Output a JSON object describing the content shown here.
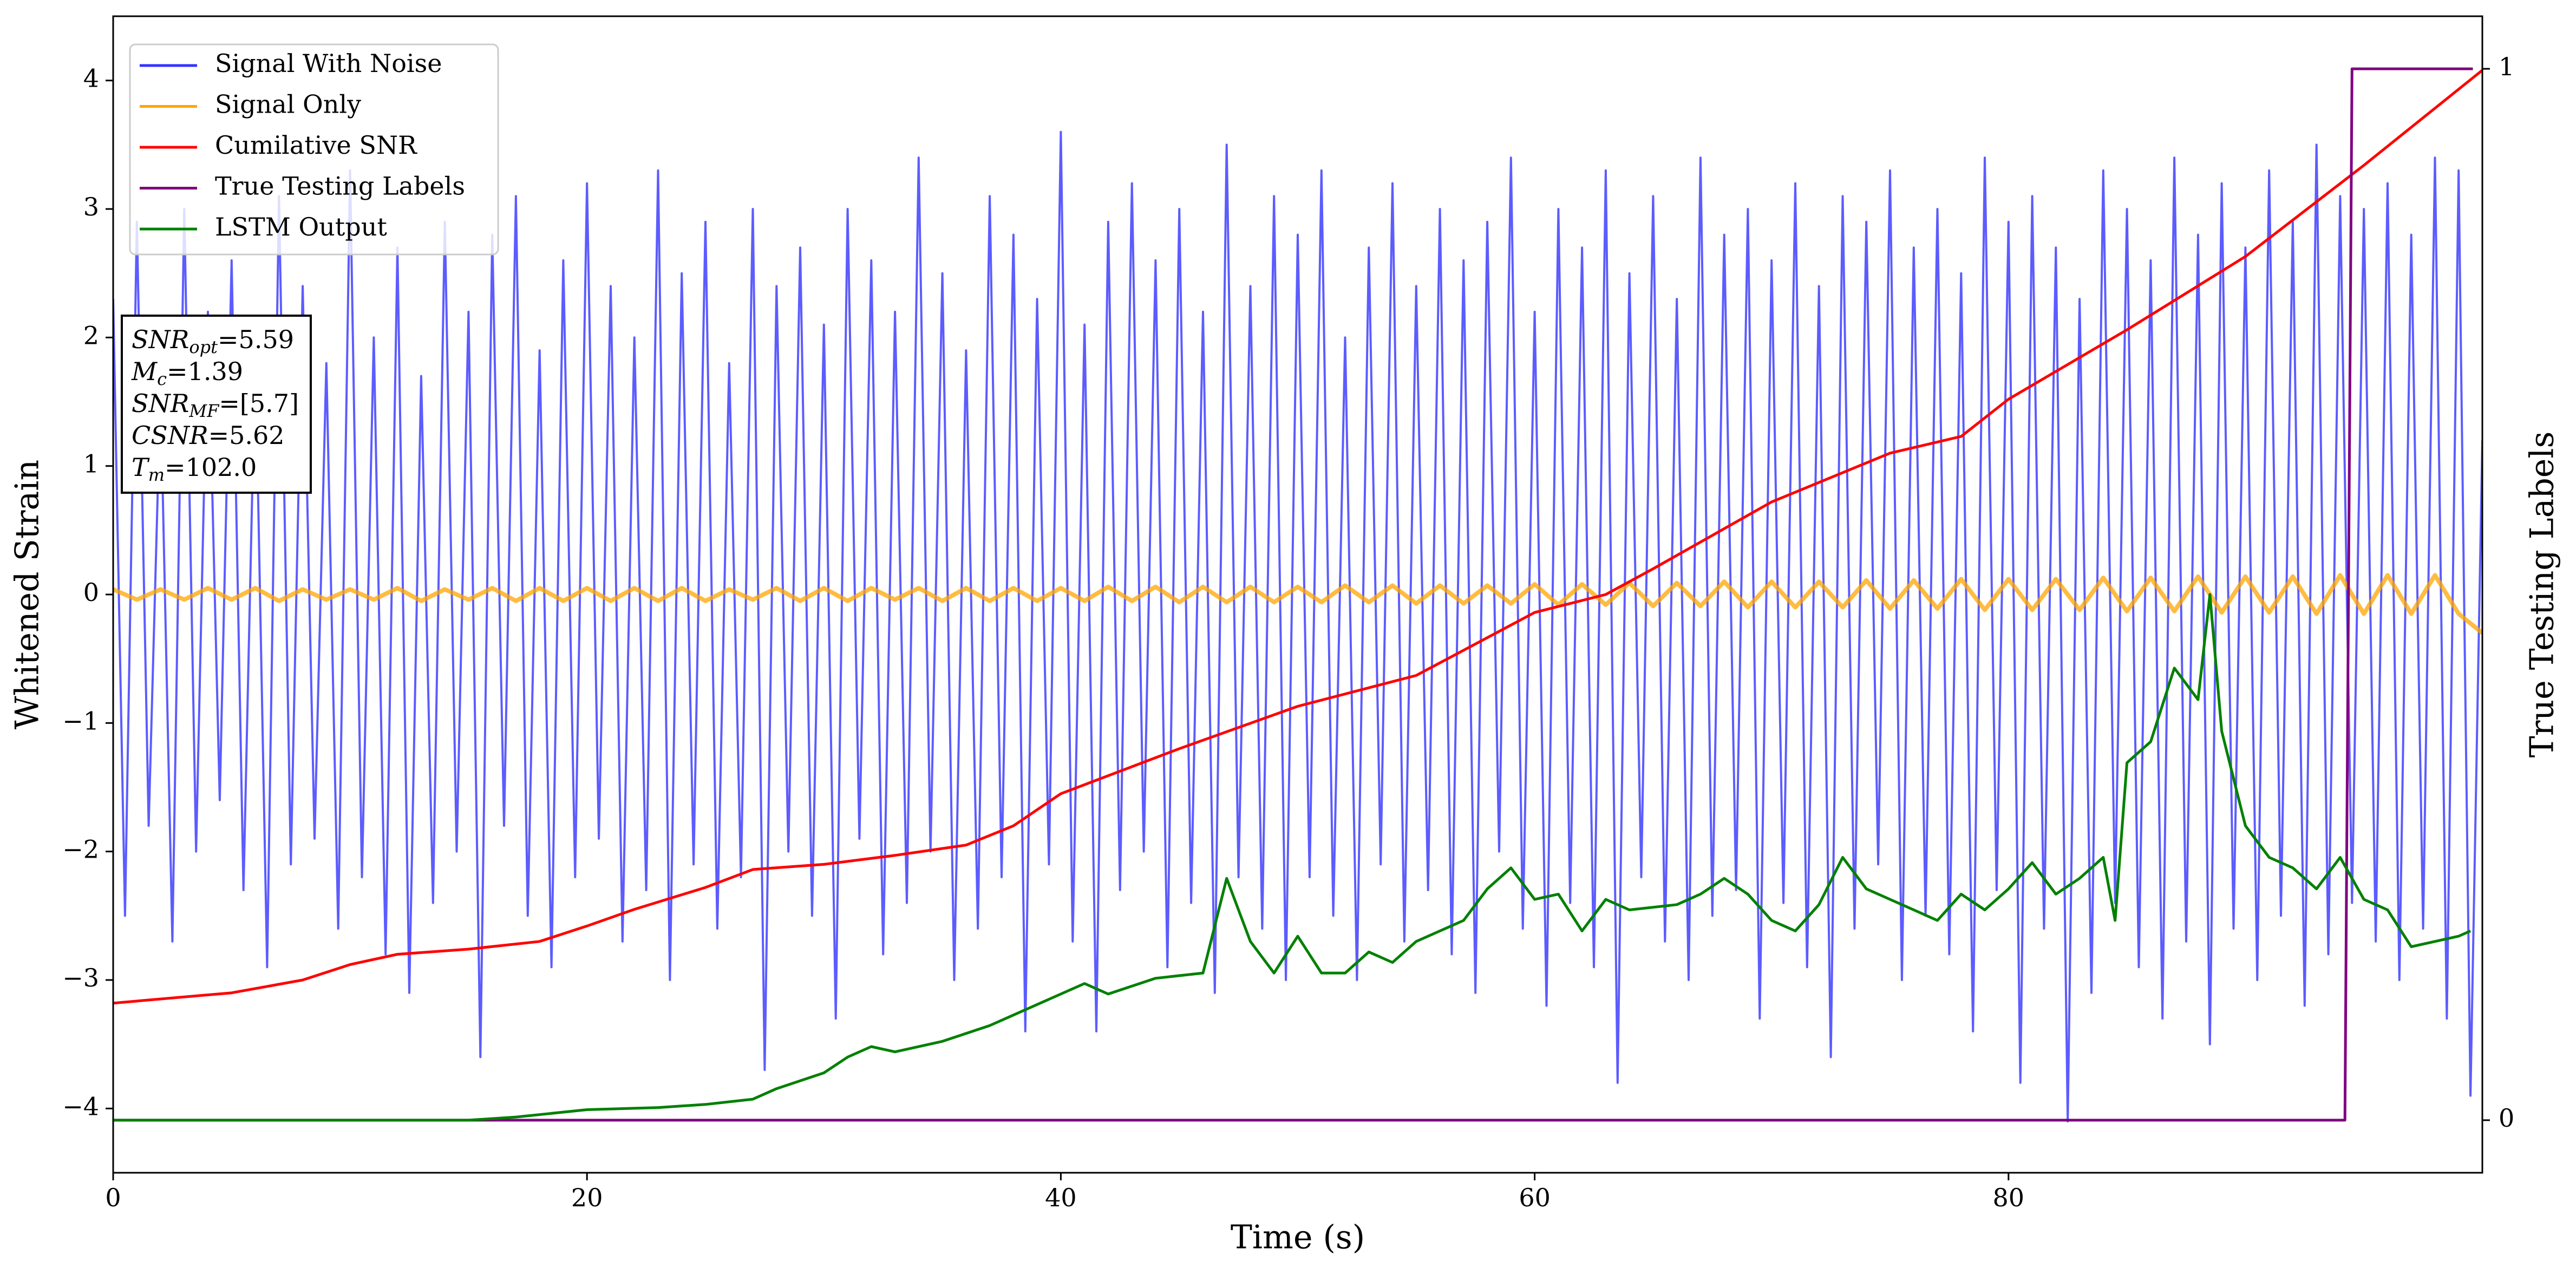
{
  "chart_data": {
    "type": "line",
    "xlabel": "Time (s)",
    "ylabel": "Whitened Strain",
    "y2label": "True Testing Labels",
    "xlim": [
      0,
      100
    ],
    "ylim": [
      -4.5,
      4.5
    ],
    "y2lim": [
      -0.05,
      1.05
    ],
    "xticks": [
      0,
      20,
      40,
      60,
      80
    ],
    "yticks": [
      {
        "value": -4,
        "label": "−4"
      },
      {
        "value": -3,
        "label": "−3"
      },
      {
        "value": -2,
        "label": "−2"
      },
      {
        "value": -1,
        "label": "−1"
      },
      0,
      1,
      2,
      3,
      4
    ],
    "y2ticks": [
      0,
      1
    ],
    "legend": "upper left",
    "annotations": [
      {
        "base": "SNR",
        "sub": "opt",
        "text": "=5.59"
      },
      {
        "base": "M",
        "sub": "c",
        "text": "=1.39"
      },
      {
        "base": "SNR",
        "sub": "MF",
        "text": "=[5.7]"
      },
      {
        "base": "CSNR",
        "sub": null,
        "text": "=5.62"
      },
      {
        "base": "T",
        "sub": "m",
        "text": "=102.0"
      }
    ],
    "series": [
      {
        "name": "Signal With Noise",
        "color": "#3333ff",
        "axis": "y",
        "x": [
          0,
          0.5,
          1,
          1.5,
          2,
          2.5,
          3,
          3.5,
          4,
          4.5,
          5,
          5.5,
          6,
          6.5,
          7,
          7.5,
          8,
          8.5,
          9,
          9.5,
          10,
          10.5,
          11,
          11.5,
          12,
          12.5,
          13,
          13.5,
          14,
          14.5,
          15,
          15.5,
          16,
          16.5,
          17,
          17.5,
          18,
          18.5,
          19,
          19.5,
          20,
          20.5,
          21,
          21.5,
          22,
          22.5,
          23,
          23.5,
          24,
          24.5,
          25,
          25.5,
          26,
          26.5,
          27,
          27.5,
          28,
          28.5,
          29,
          29.5,
          30,
          30.5,
          31,
          31.5,
          32,
          32.5,
          33,
          33.5,
          34,
          34.5,
          35,
          35.5,
          36,
          36.5,
          37,
          37.5,
          38,
          38.5,
          39,
          39.5,
          40,
          40.5,
          41,
          41.5,
          42,
          42.5,
          43,
          43.5,
          44,
          44.5,
          45,
          45.5,
          46,
          46.5,
          47,
          47.5,
          48,
          48.5,
          49,
          49.5,
          50,
          50.5,
          51,
          51.5,
          52,
          52.5,
          53,
          53.5,
          54,
          54.5,
          55,
          55.5,
          56,
          56.5,
          57,
          57.5,
          58,
          58.5,
          59,
          59.5,
          60,
          60.5,
          61,
          61.5,
          62,
          62.5,
          63,
          63.5,
          64,
          64.5,
          65,
          65.5,
          66,
          66.5,
          67,
          67.5,
          68,
          68.5,
          69,
          69.5,
          70,
          70.5,
          71,
          71.5,
          72,
          72.5,
          73,
          73.5,
          74,
          74.5,
          75,
          75.5,
          76,
          76.5,
          77,
          77.5,
          78,
          78.5,
          79,
          79.5,
          80,
          80.5,
          81,
          81.5,
          82,
          82.5,
          83,
          83.5,
          84,
          84.5,
          85,
          85.5,
          86,
          86.5,
          87,
          87.5,
          88,
          88.5,
          89,
          89.5,
          90,
          90.5,
          91,
          91.5,
          92,
          92.5,
          93,
          93.5,
          94,
          94.5,
          95,
          95.5,
          96,
          96.5,
          97,
          97.5,
          98,
          98.5,
          99,
          99.5,
          100
        ],
        "values": [
          2.3,
          -2.5,
          2.9,
          -1.8,
          1.6,
          -2.7,
          3.0,
          -2.0,
          2.2,
          -1.6,
          2.6,
          -2.3,
          1.9,
          -2.9,
          3.1,
          -2.1,
          2.4,
          -1.9,
          1.8,
          -2.6,
          3.3,
          -2.2,
          2.0,
          -2.8,
          2.7,
          -3.1,
          1.7,
          -2.4,
          2.9,
          -2.0,
          2.2,
          -3.6,
          2.8,
          -1.8,
          3.1,
          -2.5,
          1.9,
          -2.9,
          2.6,
          -2.2,
          3.2,
          -1.9,
          2.4,
          -2.7,
          2.0,
          -2.3,
          3.3,
          -3.0,
          2.5,
          -2.1,
          2.9,
          -2.6,
          1.8,
          -2.2,
          3.0,
          -3.7,
          2.4,
          -2.0,
          2.7,
          -2.5,
          2.1,
          -3.3,
          3.0,
          -1.9,
          2.6,
          -2.8,
          2.2,
          -2.4,
          3.4,
          -2.0,
          2.5,
          -3.0,
          1.9,
          -2.6,
          3.1,
          -2.2,
          2.8,
          -3.4,
          2.3,
          -2.1,
          3.6,
          -2.7,
          2.1,
          -3.4,
          2.9,
          -2.3,
          3.2,
          -2.0,
          2.6,
          -2.9,
          3.0,
          -2.4,
          2.2,
          -3.1,
          3.5,
          -2.2,
          2.4,
          -2.6,
          3.1,
          -3.0,
          2.8,
          -2.2,
          3.3,
          -2.5,
          2.0,
          -3.0,
          2.7,
          -2.1,
          3.2,
          -2.7,
          2.4,
          -2.3,
          3.0,
          -2.8,
          2.6,
          -3.1,
          2.9,
          -2.0,
          3.4,
          -2.6,
          2.2,
          -3.2,
          3.0,
          -2.4,
          2.7,
          -2.9,
          3.3,
          -3.8,
          2.5,
          -2.2,
          3.1,
          -2.7,
          2.3,
          -3.0,
          3.4,
          -2.5,
          2.8,
          -2.3,
          3.0,
          -3.3,
          2.6,
          -2.4,
          3.2,
          -2.9,
          2.4,
          -3.6,
          3.1,
          -2.6,
          2.9,
          -2.1,
          3.3,
          -3.0,
          2.7,
          -2.5,
          3.0,
          -2.8,
          2.5,
          -3.4,
          3.4,
          -2.3,
          2.9,
          -3.8,
          3.1,
          -2.6,
          2.7,
          -4.1,
          2.3,
          -3.1,
          3.3,
          -2.4,
          3.0,
          -2.9,
          2.6,
          -3.3,
          3.4,
          -2.7,
          2.8,
          -3.5,
          3.2,
          -2.6,
          2.7,
          -3.0,
          3.3,
          -2.5,
          2.9,
          -3.2,
          3.5,
          -2.8,
          3.1,
          -2.4,
          3.0,
          -2.7,
          3.2,
          -3.0,
          2.8,
          -2.6,
          3.4,
          -3.3,
          3.3,
          -3.9,
          1.2
        ]
      },
      {
        "name": "Signal Only",
        "color": "#ffa500",
        "axis": "y",
        "x": [
          0,
          1,
          2,
          3,
          4,
          5,
          6,
          7,
          8,
          9,
          10,
          11,
          12,
          13,
          14,
          15,
          16,
          17,
          18,
          19,
          20,
          21,
          22,
          23,
          24,
          25,
          26,
          27,
          28,
          29,
          30,
          31,
          32,
          33,
          34,
          35,
          36,
          37,
          38,
          39,
          40,
          41,
          42,
          43,
          44,
          45,
          46,
          47,
          48,
          49,
          50,
          51,
          52,
          53,
          54,
          55,
          56,
          57,
          58,
          59,
          60,
          61,
          62,
          63,
          64,
          65,
          66,
          67,
          68,
          69,
          70,
          71,
          72,
          73,
          74,
          75,
          76,
          77,
          78,
          79,
          80,
          81,
          82,
          83,
          84,
          85,
          86,
          87,
          88,
          89,
          90,
          91,
          92,
          93,
          94,
          95,
          96,
          97,
          98,
          99,
          100
        ],
        "values": [
          0.04,
          -0.04,
          0.04,
          -0.04,
          0.05,
          -0.04,
          0.05,
          -0.05,
          0.04,
          -0.04,
          0.04,
          -0.04,
          0.05,
          -0.05,
          0.04,
          -0.04,
          0.05,
          -0.05,
          0.05,
          -0.05,
          0.05,
          -0.05,
          0.05,
          -0.05,
          0.05,
          -0.05,
          0.04,
          -0.04,
          0.05,
          -0.05,
          0.05,
          -0.05,
          0.05,
          -0.04,
          0.05,
          -0.05,
          0.05,
          -0.05,
          0.05,
          -0.05,
          0.05,
          -0.05,
          0.06,
          -0.05,
          0.06,
          -0.06,
          0.06,
          -0.06,
          0.06,
          -0.06,
          0.06,
          -0.06,
          0.07,
          -0.06,
          0.07,
          -0.07,
          0.07,
          -0.07,
          0.07,
          -0.07,
          0.08,
          -0.08,
          0.08,
          -0.08,
          0.09,
          -0.09,
          0.09,
          -0.09,
          0.1,
          -0.1,
          0.1,
          -0.1,
          0.1,
          -0.1,
          0.11,
          -0.11,
          0.11,
          -0.11,
          0.12,
          -0.12,
          0.12,
          -0.12,
          0.12,
          -0.12,
          0.13,
          -0.13,
          0.13,
          -0.13,
          0.14,
          -0.14,
          0.14,
          -0.14,
          0.14,
          -0.15,
          0.15,
          -0.15,
          0.15,
          -0.15,
          0.15,
          -0.15,
          -0.3
        ]
      },
      {
        "name": "Cumilative SNR",
        "color": "#ff0000",
        "axis": "y",
        "x": [
          0,
          5,
          8,
          10,
          12,
          15,
          18,
          20,
          22,
          25,
          27,
          30,
          33,
          36,
          38,
          40,
          45,
          50,
          55,
          60,
          63,
          65,
          70,
          75,
          78,
          80,
          85,
          90,
          95,
          100
        ],
        "values": [
          -3.18,
          -3.1,
          -3.0,
          -2.88,
          -2.8,
          -2.76,
          -2.7,
          -2.58,
          -2.45,
          -2.28,
          -2.14,
          -2.1,
          -2.03,
          -1.95,
          -1.8,
          -1.55,
          -1.2,
          -0.87,
          -0.63,
          -0.14,
          0.0,
          0.2,
          0.72,
          1.1,
          1.23,
          1.52,
          2.06,
          2.63,
          3.34,
          4.08
        ]
      },
      {
        "name": "True Testing Labels",
        "color": "#800080",
        "axis": "y2",
        "x": [
          0,
          94.2,
          94.5,
          99.6
        ],
        "values": [
          0,
          0,
          1,
          1
        ]
      },
      {
        "name": "LSTM Output",
        "color": "#008000",
        "axis": "y2",
        "x": [
          0,
          15,
          17,
          20,
          23,
          25,
          27,
          28,
          30,
          31,
          32,
          33,
          35,
          37,
          38,
          39,
          40,
          41,
          42,
          44,
          46,
          47,
          48,
          49,
          50,
          51,
          52,
          53,
          54,
          55,
          56,
          57,
          58,
          59,
          60,
          61,
          62,
          63,
          64,
          66,
          67,
          68,
          69,
          70,
          71,
          72,
          73,
          74,
          75,
          76,
          77,
          78,
          79,
          80,
          81,
          82,
          83,
          84,
          84.5,
          85,
          86,
          87,
          88,
          88.5,
          89,
          90,
          91,
          92,
          93,
          94,
          95,
          96,
          97,
          98,
          99,
          99.5
        ],
        "values": [
          0,
          0,
          0.003,
          0.01,
          0.012,
          0.015,
          0.02,
          0.03,
          0.045,
          0.06,
          0.07,
          0.065,
          0.075,
          0.09,
          0.1,
          0.11,
          0.12,
          0.13,
          0.12,
          0.135,
          0.14,
          0.23,
          0.17,
          0.14,
          0.175,
          0.14,
          0.14,
          0.16,
          0.15,
          0.17,
          0.18,
          0.19,
          0.22,
          0.24,
          0.21,
          0.215,
          0.18,
          0.21,
          0.2,
          0.205,
          0.215,
          0.23,
          0.215,
          0.19,
          0.18,
          0.205,
          0.25,
          0.22,
          0.21,
          0.2,
          0.19,
          0.215,
          0.2,
          0.22,
          0.245,
          0.215,
          0.23,
          0.25,
          0.19,
          0.34,
          0.36,
          0.43,
          0.4,
          0.5,
          0.37,
          0.28,
          0.25,
          0.24,
          0.22,
          0.25,
          0.21,
          0.2,
          0.165,
          0.17,
          0.175,
          0.18
        ]
      }
    ]
  }
}
